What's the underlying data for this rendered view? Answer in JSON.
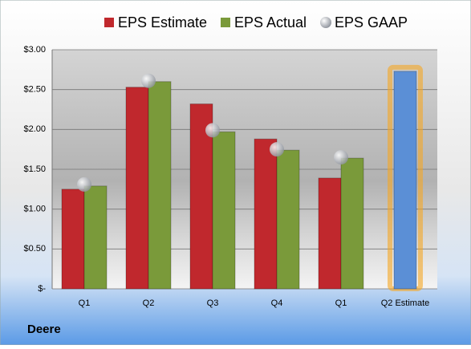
{
  "chart_data": {
    "type": "bar",
    "caption": "Deere",
    "categories": [
      "Q1",
      "Q2",
      "Q3",
      "Q4",
      "Q1",
      "Q2 Estimate"
    ],
    "series": [
      {
        "name": "EPS Estimate",
        "color": "#c0282d",
        "values": [
          1.25,
          2.53,
          2.32,
          1.88,
          1.39,
          2.73
        ],
        "colors": [
          "#c0282d",
          "#c0282d",
          "#c0282d",
          "#c0282d",
          "#c0282d",
          "#5b8fd6"
        ]
      },
      {
        "name": "EPS Actual",
        "color": "#7a9a3a",
        "values": [
          1.29,
          2.6,
          1.97,
          1.74,
          1.64,
          null
        ]
      },
      {
        "name": "EPS GAAP",
        "color": "#b8bcc4",
        "marker": "circle",
        "values": [
          1.31,
          2.61,
          1.99,
          1.75,
          1.65,
          null
        ]
      }
    ],
    "ylim": [
      0,
      3
    ],
    "yticks": [
      {
        "value": 0,
        "label": "$-"
      },
      {
        "value": 0.5,
        "label": "$0.50"
      },
      {
        "value": 1,
        "label": "$1.00"
      },
      {
        "value": 1.5,
        "label": "$1.50"
      },
      {
        "value": 2,
        "label": "$2.00"
      },
      {
        "value": 2.5,
        "label": "$2.50"
      },
      {
        "value": 3,
        "label": "$3.00"
      }
    ],
    "grid": true
  }
}
